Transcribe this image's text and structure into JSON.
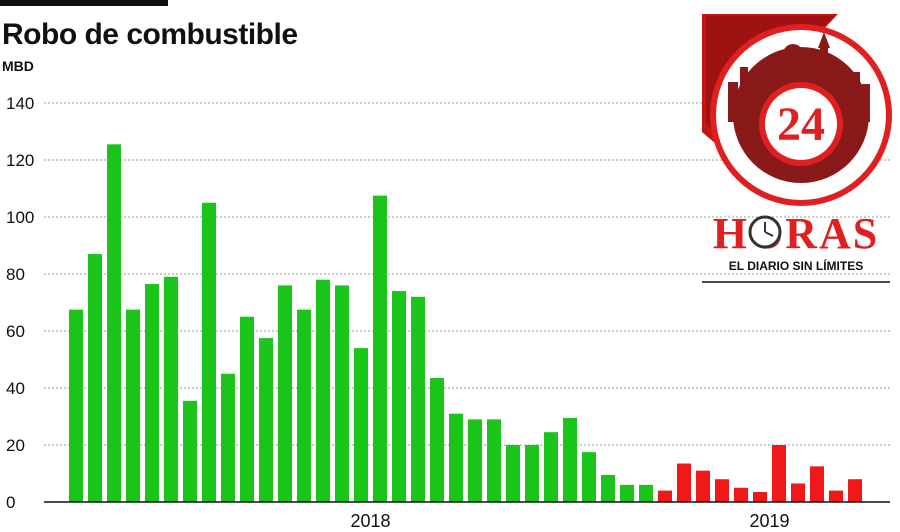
{
  "header": {
    "title": "Robo de combustible",
    "unit": "MBD"
  },
  "logo": {
    "number": "24",
    "word": "HORAS",
    "tagline": "EL DIARIO SIN LÍMITES"
  },
  "colors": {
    "green": "#1ac41a",
    "red": "#f01818",
    "grid": "#9a9a9a",
    "axis": "#111111",
    "brand_red": "#e02020",
    "brand_dark": "#8a1a1a"
  },
  "chart_data": {
    "type": "bar",
    "title": "Robo de combustible",
    "ylabel": "MBD",
    "xlabel": "",
    "ylim": [
      0,
      140
    ],
    "yticks": [
      0,
      20,
      40,
      60,
      80,
      100,
      120,
      140
    ],
    "grid": true,
    "year_labels": [
      {
        "label": "2018",
        "index": 15.5
      },
      {
        "label": "2019",
        "index": 36.5
      }
    ],
    "values": [
      67.5,
      87,
      125.5,
      67.5,
      76.5,
      79,
      35.5,
      105,
      45,
      65,
      57.5,
      76,
      67.5,
      78,
      76,
      54,
      107.5,
      74,
      72,
      43.5,
      31,
      29,
      29,
      20,
      20,
      24.5,
      29.5,
      17.5,
      9.5,
      6,
      6,
      4,
      13.5,
      11,
      8,
      5,
      3.5,
      20,
      6.5,
      12.5,
      4,
      8
    ],
    "colors_by_index": {
      "green_until": 30,
      "red_from": 31
    }
  }
}
